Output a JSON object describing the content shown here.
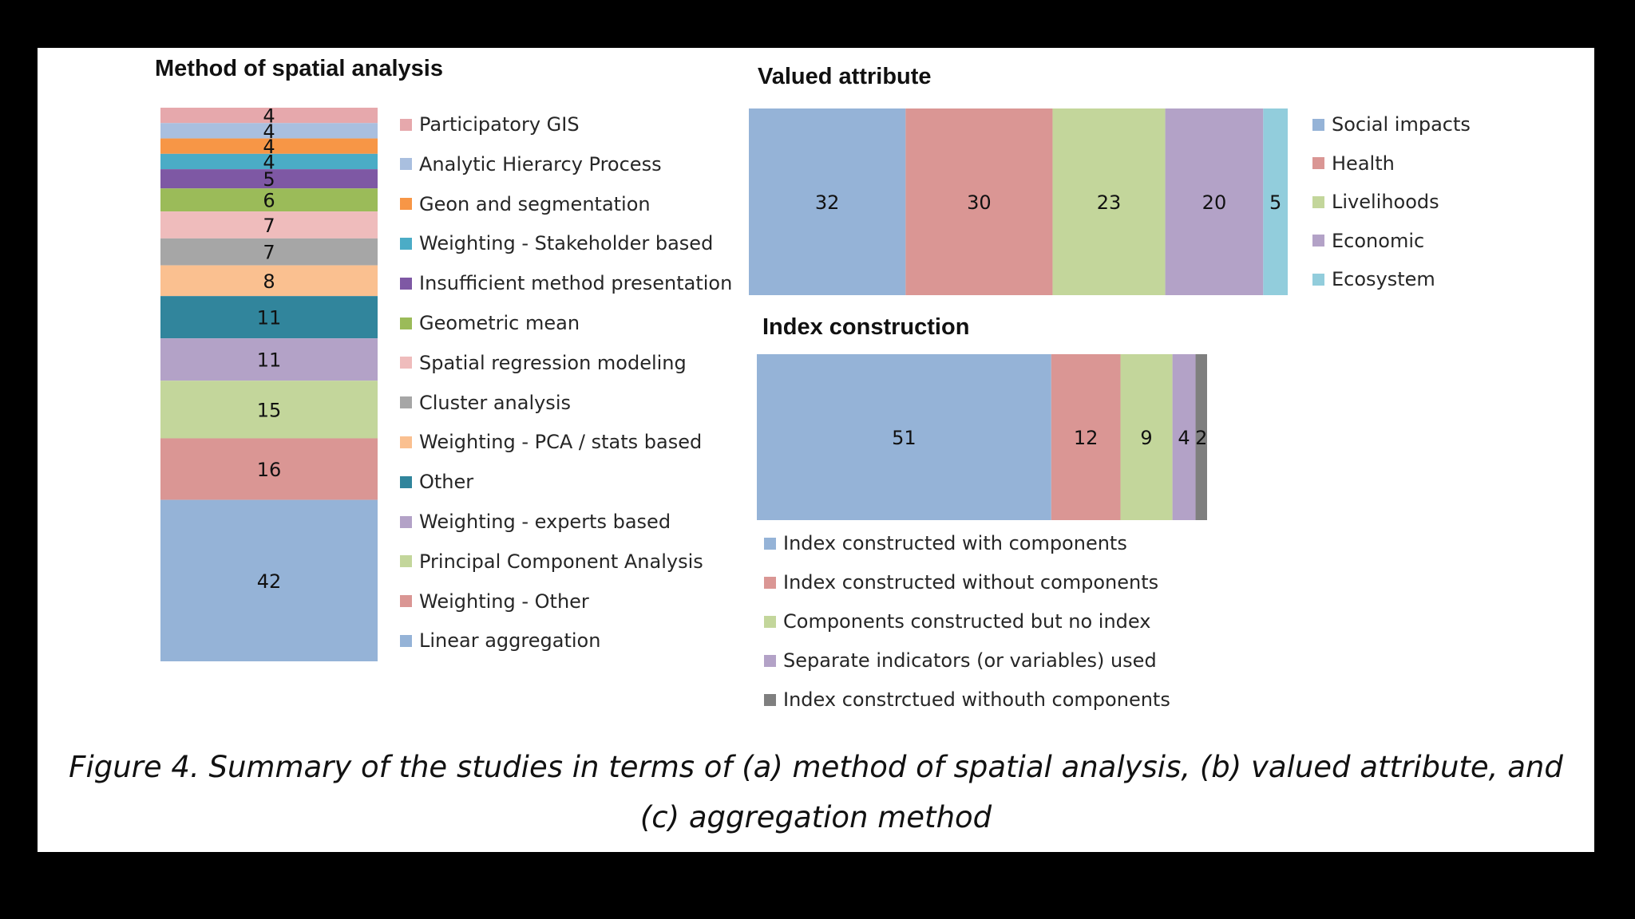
{
  "chart_data": [
    {
      "type": "bar",
      "stacked": true,
      "orientation": "vertical",
      "title": "Method of spatial analysis",
      "legend_position": "right",
      "grid": false,
      "series": [
        {
          "name": "Participatory GIS",
          "values": [
            4
          ],
          "color": "#e6a8ac"
        },
        {
          "name": "Analytic Hierarcy Process",
          "values": [
            4
          ],
          "color": "#a9bfdf"
        },
        {
          "name": "Geon and segmentation",
          "values": [
            4
          ],
          "color": "#f79646"
        },
        {
          "name": "Weighting - Stakeholder based",
          "values": [
            4
          ],
          "color": "#4bacc6"
        },
        {
          "name": "Insufficient method presentation",
          "values": [
            5
          ],
          "color": "#7e58a4"
        },
        {
          "name": "Geometric mean",
          "values": [
            6
          ],
          "color": "#9bbb59"
        },
        {
          "name": "Spatial regression modeling",
          "values": [
            7
          ],
          "color": "#efbcbc"
        },
        {
          "name": "Cluster analysis",
          "values": [
            7
          ],
          "color": "#a6a6a6"
        },
        {
          "name": "Weighting - PCA / stats based",
          "values": [
            8
          ],
          "color": "#fac090"
        },
        {
          "name": "Other",
          "values": [
            11
          ],
          "color": "#31859c"
        },
        {
          "name": "Weighting - experts based",
          "values": [
            11
          ],
          "color": "#b3a2c7"
        },
        {
          "name": "Principal Component Analysis",
          "values": [
            15
          ],
          "color": "#c3d69b"
        },
        {
          "name": "Weighting - Other",
          "values": [
            16
          ],
          "color": "#da9694"
        },
        {
          "name": "Linear aggregation",
          "values": [
            42
          ],
          "color": "#95b3d7"
        }
      ]
    },
    {
      "type": "bar",
      "stacked": true,
      "orientation": "horizontal",
      "title": "Valued attribute",
      "legend_position": "right",
      "grid": false,
      "series": [
        {
          "name": "Social impacts",
          "values": [
            32
          ],
          "color": "#95b3d7"
        },
        {
          "name": "Health",
          "values": [
            30
          ],
          "color": "#da9694"
        },
        {
          "name": "Livelihoods",
          "values": [
            23
          ],
          "color": "#c3d69b"
        },
        {
          "name": "Economic",
          "values": [
            20
          ],
          "color": "#b3a2c7"
        },
        {
          "name": "Ecosystem",
          "values": [
            5
          ],
          "color": "#92cddc"
        }
      ]
    },
    {
      "type": "bar",
      "stacked": true,
      "orientation": "horizontal",
      "title": "Index construction",
      "legend_position": "bottom",
      "grid": false,
      "series": [
        {
          "name": "Index constructed with components",
          "values": [
            51
          ],
          "color": "#95b3d7"
        },
        {
          "name": "Index constructed without components",
          "values": [
            12
          ],
          "color": "#da9694"
        },
        {
          "name": "Components constructed but no index",
          "values": [
            9
          ],
          "color": "#c3d69b"
        },
        {
          "name": "Separate indicators (or variables) used",
          "values": [
            4
          ],
          "color": "#b3a2c7"
        },
        {
          "name": "Index constrctued withouth components",
          "values": [
            2
          ],
          "color": "#7f7f7f"
        }
      ]
    }
  ],
  "caption": {
    "line1": "Figure 4. Summary of the studies in terms of (a) method of spatial analysis, (b) valued attribute, and",
    "line2": "(c) aggregation method"
  }
}
